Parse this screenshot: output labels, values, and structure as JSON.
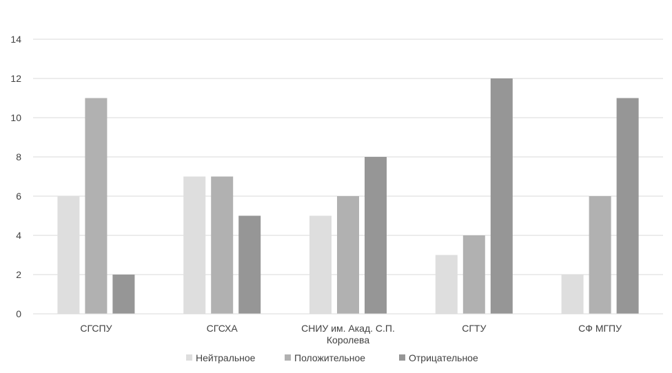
{
  "chart_data": {
    "type": "bar",
    "categories": [
      [
        "СГСПУ"
      ],
      [
        "СГСХА"
      ],
      [
        "СНИУ им. Акад. С.П.",
        "Королева"
      ],
      [
        "СГТУ"
      ],
      [
        "СФ МГПУ"
      ]
    ],
    "series": [
      {
        "name": "Нейтральное",
        "color": "#dedede",
        "values": [
          6,
          7,
          5,
          3,
          2
        ]
      },
      {
        "name": "Положительное",
        "color": "#b1b1b1",
        "values": [
          11,
          7,
          6,
          4,
          6
        ]
      },
      {
        "name": "Отрицательное",
        "color": "#969696",
        "values": [
          2,
          5,
          8,
          12,
          11
        ]
      }
    ],
    "yticks": [
      "0",
      "2",
      "4",
      "6",
      "8",
      "10",
      "12",
      "14"
    ],
    "ylim": [
      0,
      14
    ],
    "grid": true,
    "legend_position": "bottom"
  }
}
